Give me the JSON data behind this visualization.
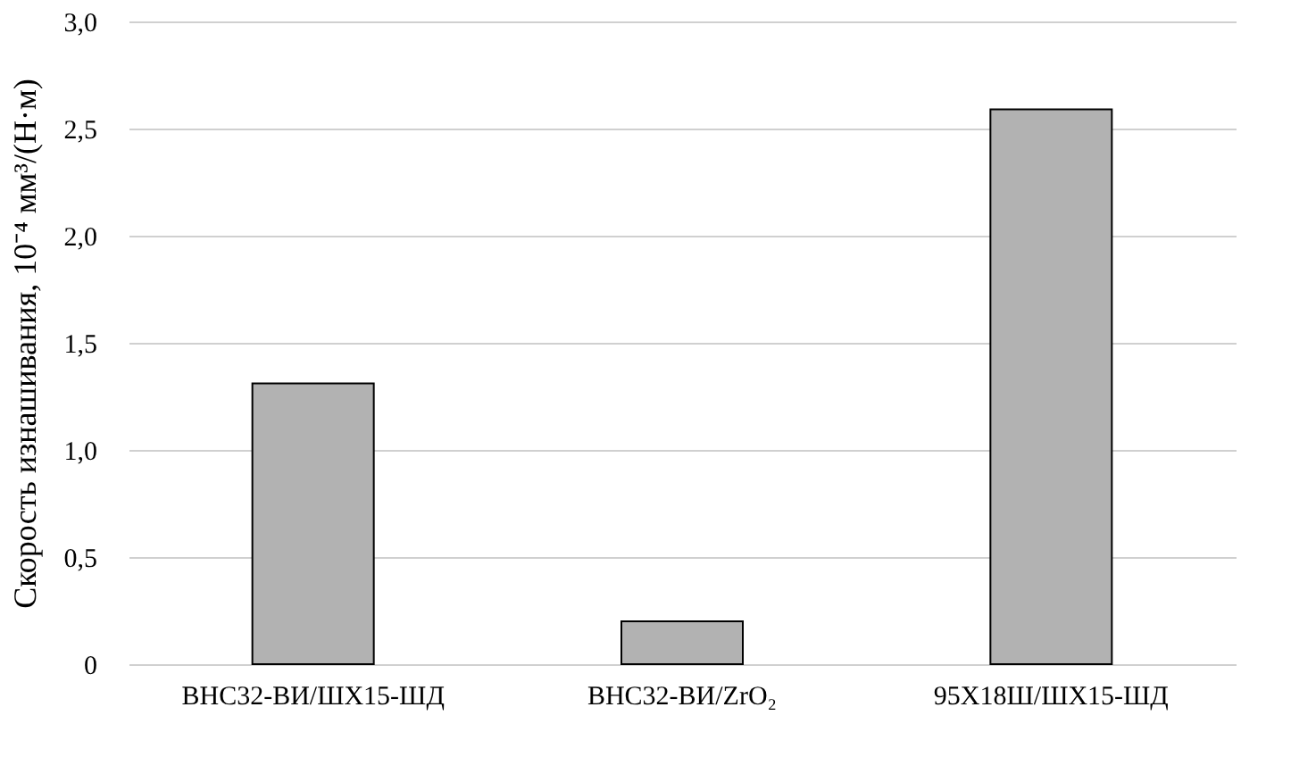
{
  "chart_data": {
    "type": "bar",
    "ylabel": "Скорость изнашивания, 10⁻⁴ мм³/(Н·м)",
    "categories": [
      "ВНС32-ВИ/ШХ15-ШД",
      "ВНС32-ВИ/ZrO₂",
      "95Х18Ш/ШХ15-ШД"
    ],
    "values": [
      1.31,
      0.2,
      2.59
    ],
    "color": "#b2b2b2",
    "ylim": [
      0,
      3
    ],
    "yticks": [
      0,
      {
        "value": 0.5,
        "label": "0,5"
      },
      {
        "value": 1,
        "label": "1,0"
      },
      {
        "value": 1.5,
        "label": "1,5"
      },
      {
        "value": 2,
        "label": "2,0"
      },
      {
        "value": 2.5,
        "label": "2,5"
      },
      {
        "value": 3,
        "label": "3,0"
      }
    ],
    "grid": "y"
  }
}
